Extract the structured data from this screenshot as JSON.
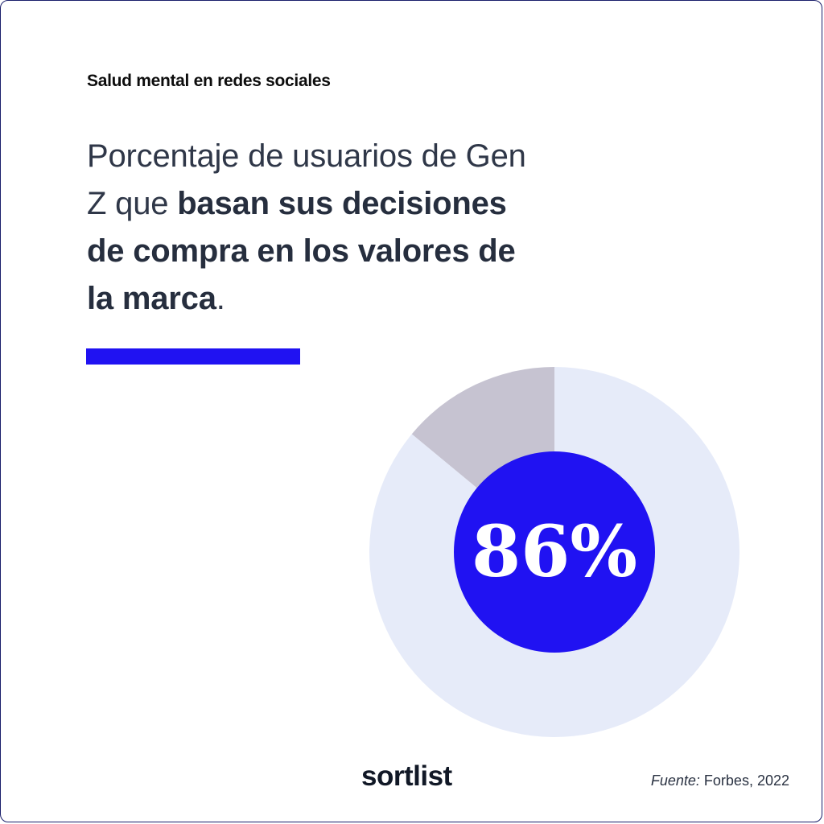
{
  "header": {
    "kicker": "Salud mental en redes sociales"
  },
  "headline": {
    "part1": "Porcentaje de usuarios de Gen Z que ",
    "part2_bold": "basan sus decisiones de compra en los valores de la marca",
    "part3": "."
  },
  "chart_data": {
    "type": "pie",
    "title": "",
    "slices": [
      {
        "name": "",
        "value": 86,
        "color": "#e6ebf9"
      },
      {
        "name": "",
        "value": 14,
        "color": "#c6c3d1"
      }
    ],
    "center_label": "86%",
    "center_color": "#2012f2",
    "center_text_color": "#ffffff"
  },
  "footer": {
    "brand": "sortlist",
    "source_label": "Fuente:",
    "source_value": " Forbes, 2022"
  },
  "colors": {
    "accent": "#2012f2",
    "text_dark": "#2a3242",
    "border": "#1a1f6b"
  }
}
